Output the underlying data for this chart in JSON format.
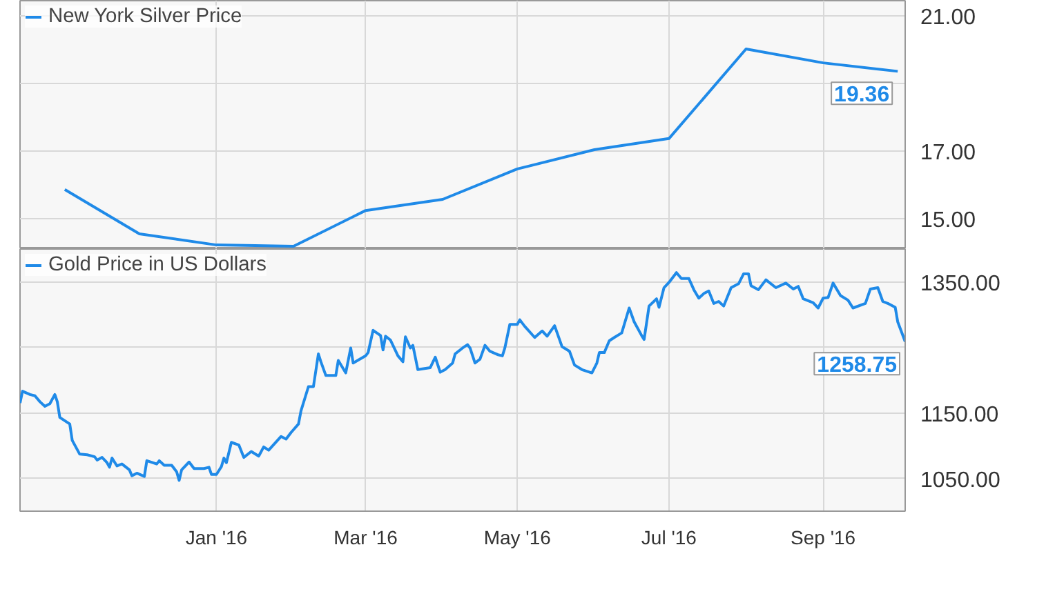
{
  "chart_data": [
    {
      "type": "line",
      "x": [
        "2015-11-01",
        "2015-12-01",
        "2016-01-01",
        "2016-02-01",
        "2016-03-01",
        "2016-04-01",
        "2016-05-01",
        "2016-06-01",
        "2016-07-01",
        "2016-08-01",
        "2016-09-01",
        "2016-10-01"
      ],
      "series": [
        {
          "name": "New York Silver Price",
          "color": "#1f8ae8",
          "values": [
            15.86,
            14.55,
            14.22,
            14.18,
            15.24,
            15.57,
            16.47,
            17.04,
            17.37,
            20.02,
            19.61,
            19.36
          ]
        }
      ],
      "xlim": [
        "2015-10-14",
        "2016-10-04"
      ],
      "xticks": [
        {
          "value": "2016-01-01",
          "label": null
        },
        {
          "value": "2016-03-01",
          "label": null
        },
        {
          "value": "2016-05-01",
          "label": null
        },
        {
          "value": "2016-07-01",
          "label": null
        },
        {
          "value": "2016-09-01",
          "label": null
        }
      ],
      "ylim": [
        14.1,
        21.45
      ],
      "yticks": [
        {
          "value": 15,
          "label": "15.00"
        },
        {
          "value": 17,
          "label": "17.00"
        },
        {
          "value": 19,
          "label": null
        },
        {
          "value": 21,
          "label": "21.00"
        }
      ],
      "tick_labels": "y",
      "grid": true,
      "legend": "top left",
      "annotations": [
        {
          "text": "19.36",
          "x": "2016-10-01",
          "y": 19.36
        }
      ]
    },
    {
      "type": "line",
      "x": [
        "2015-10-14",
        "2015-10-15",
        "2015-10-18",
        "2015-10-20",
        "2015-10-22",
        "2015-10-24",
        "2015-10-26",
        "2015-10-28",
        "2015-10-29",
        "2015-10-30",
        "2015-11-03",
        "2015-11-04",
        "2015-11-07",
        "2015-11-10",
        "2015-11-13",
        "2015-11-14",
        "2015-11-16",
        "2015-11-18",
        "2015-11-19",
        "2015-11-20",
        "2015-11-22",
        "2015-11-24",
        "2015-11-27",
        "2015-11-28",
        "2015-11-30",
        "2015-12-03",
        "2015-12-04",
        "2015-12-08",
        "2015-12-09",
        "2015-12-11",
        "2015-12-14",
        "2015-12-16",
        "2015-12-17",
        "2015-12-18",
        "2015-12-21",
        "2015-12-23",
        "2015-12-27",
        "2015-12-29",
        "2015-12-30",
        "2016-01-01",
        "2016-01-03",
        "2016-01-04",
        "2016-01-05",
        "2016-01-07",
        "2016-01-10",
        "2016-01-12",
        "2016-01-15",
        "2016-01-18",
        "2016-01-20",
        "2016-01-22",
        "2016-01-27",
        "2016-01-29",
        "2016-01-31",
        "2016-02-03",
        "2016-02-04",
        "2016-02-07",
        "2016-02-09",
        "2016-02-11",
        "2016-02-12",
        "2016-02-14",
        "2016-02-18",
        "2016-02-19",
        "2016-02-22",
        "2016-02-24",
        "2016-02-25",
        "2016-03-01",
        "2016-03-02",
        "2016-03-04",
        "2016-03-07",
        "2016-03-08",
        "2016-03-09",
        "2016-03-11",
        "2016-03-14",
        "2016-03-16",
        "2016-03-17",
        "2016-03-19",
        "2016-03-20",
        "2016-03-22",
        "2016-03-27",
        "2016-03-29",
        "2016-03-31",
        "2016-04-02",
        "2016-04-05",
        "2016-04-06",
        "2016-04-09",
        "2016-04-11",
        "2016-04-12",
        "2016-04-14",
        "2016-04-16",
        "2016-04-18",
        "2016-04-20",
        "2016-04-23",
        "2016-04-25",
        "2016-04-26",
        "2016-04-28",
        "2016-05-01",
        "2016-05-02",
        "2016-05-04",
        "2016-05-08",
        "2016-05-11",
        "2016-05-13",
        "2016-05-16",
        "2016-05-19",
        "2016-05-22",
        "2016-05-24",
        "2016-05-27",
        "2016-05-31",
        "2016-06-02",
        "2016-06-03",
        "2016-06-05",
        "2016-06-07",
        "2016-06-09",
        "2016-06-12",
        "2016-06-15",
        "2016-06-17",
        "2016-06-20",
        "2016-06-21",
        "2016-06-23",
        "2016-06-26",
        "2016-06-27",
        "2016-06-29",
        "2016-07-01",
        "2016-07-04",
        "2016-07-06",
        "2016-07-09",
        "2016-07-11",
        "2016-07-13",
        "2016-07-15",
        "2016-07-17",
        "2016-07-19",
        "2016-07-21",
        "2016-07-23",
        "2016-07-26",
        "2016-07-29",
        "2016-07-31",
        "2016-08-02",
        "2016-08-03",
        "2016-08-06",
        "2016-08-09",
        "2016-08-13",
        "2016-08-17",
        "2016-08-20",
        "2016-08-22",
        "2016-08-24",
        "2016-08-28",
        "2016-08-30",
        "2016-09-01",
        "2016-09-03",
        "2016-09-05",
        "2016-09-08",
        "2016-09-11",
        "2016-09-13",
        "2016-09-18",
        "2016-09-20",
        "2016-09-23",
        "2016-09-25",
        "2016-09-27",
        "2016-09-30",
        "2016-10-01",
        "2016-10-04"
      ],
      "series": [
        {
          "name": "Gold Price in US Dollars",
          "color": "#1f8ae8",
          "values": [
            1165,
            1183,
            1178,
            1176,
            1167,
            1160,
            1164,
            1178,
            1167,
            1143,
            1133,
            1108,
            1087,
            1086,
            1083,
            1078,
            1082,
            1074,
            1067,
            1081,
            1069,
            1072,
            1063,
            1054,
            1058,
            1053,
            1077,
            1072,
            1077,
            1070,
            1070,
            1060,
            1047,
            1063,
            1075,
            1065,
            1065,
            1067,
            1056,
            1056,
            1068,
            1081,
            1074,
            1105,
            1101,
            1082,
            1091,
            1084,
            1098,
            1093,
            1114,
            1110,
            1120,
            1133,
            1153,
            1190,
            1190,
            1240,
            1228,
            1207,
            1207,
            1230,
            1211,
            1249,
            1226,
            1237,
            1242,
            1276,
            1268,
            1246,
            1267,
            1261,
            1237,
            1228,
            1266,
            1249,
            1253,
            1216,
            1219,
            1235,
            1212,
            1216,
            1226,
            1240,
            1249,
            1254,
            1249,
            1226,
            1232,
            1253,
            1244,
            1239,
            1237,
            1249,
            1285,
            1285,
            1292,
            1282,
            1265,
            1275,
            1267,
            1283,
            1251,
            1244,
            1223,
            1216,
            1211,
            1226,
            1242,
            1242,
            1260,
            1265,
            1272,
            1310,
            1289,
            1268,
            1262,
            1313,
            1324,
            1311,
            1341,
            1349,
            1364,
            1355,
            1355,
            1338,
            1325,
            1332,
            1336,
            1317,
            1320,
            1313,
            1341,
            1347,
            1362,
            1362,
            1344,
            1338,
            1353,
            1341,
            1348,
            1339,
            1343,
            1324,
            1318,
            1310,
            1325,
            1326,
            1348,
            1329,
            1322,
            1310,
            1317,
            1339,
            1341,
            1320,
            1317,
            1311,
            1289,
            1258.75
          ]
        }
      ],
      "xlim": [
        "2015-10-14",
        "2016-10-04"
      ],
      "xticks": [
        {
          "value": "2016-01-01",
          "label": "Jan '16"
        },
        {
          "value": "2016-03-01",
          "label": "Mar '16"
        },
        {
          "value": "2016-05-01",
          "label": "May '16"
        },
        {
          "value": "2016-07-01",
          "label": "Jul '16"
        },
        {
          "value": "2016-09-01",
          "label": "Sep '16"
        }
      ],
      "ylim": [
        1000,
        1400
      ],
      "yticks": [
        {
          "value": 1050,
          "label": "1050.00"
        },
        {
          "value": 1150,
          "label": "1150.00"
        },
        {
          "value": 1250,
          "label": null
        },
        {
          "value": 1350,
          "label": "1350.00"
        }
      ],
      "grid": true,
      "legend": "top left",
      "annotations": [
        {
          "text": "1258.75",
          "x": "2016-10-04",
          "y": 1258.75
        }
      ]
    }
  ]
}
